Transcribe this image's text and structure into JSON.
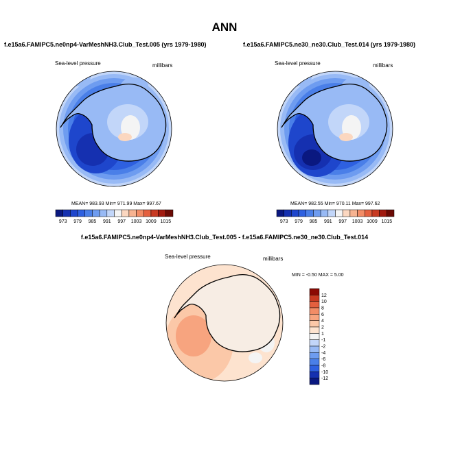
{
  "figure": {
    "title": "ANN"
  },
  "panels": [
    {
      "title": "f.e15a6.FAMIPC5.ne0np4-VarMeshNH3.Club_Test.005 (yrs 1979-1980)",
      "left_label": "Sea-level pressure",
      "right_label": "millibars",
      "stats": "MEAN= 983.93   Min= 971.99   Max= 997.67"
    },
    {
      "title": "f.e15a6.FAMIPC5.ne30_ne30.Club_Test.014 (yrs 1979-1980)",
      "left_label": "Sea-level pressure",
      "right_label": "millibars",
      "stats": "MEAN= 982.55   Min= 970.11   Max= 997.62"
    },
    {
      "title": "f.e15a6.FAMIPC5.ne0np4-VarMeshNH3.Club_Test.005 - f.e15a6.FAMIPC5.ne30_ne30.Club_Test.014",
      "left_label": "Sea-level pressure",
      "right_label": "millibars",
      "stats": "MIN =  -0.50  MAX =    5.00"
    }
  ],
  "chart_data": [
    {
      "type": "heatmap",
      "projection": "south-polar-stereographic",
      "variable": "Sea-level pressure",
      "units": "millibars",
      "summary": {
        "mean": 983.93,
        "min": 971.99,
        "max": 997.67
      },
      "colorbar": {
        "orientation": "horizontal",
        "levels": [
          973,
          976,
          979,
          982,
          985,
          988,
          991,
          994,
          997,
          1000,
          1003,
          1006,
          1009,
          1012,
          1015
        ],
        "tick_labels": [
          "973",
          "979",
          "985",
          "991",
          "997",
          "1003",
          "1009",
          "1015"
        ],
        "colors": [
          "#0a1880",
          "#1530b0",
          "#1e46cc",
          "#2e60e0",
          "#4a7fe8",
          "#6e9cf0",
          "#98baf5",
          "#c2d6f9",
          "#f4f4f4",
          "#fbd7c0",
          "#f7b391",
          "#f28c66",
          "#e4603f",
          "#c83a22",
          "#a11a0f",
          "#6b0a04"
        ]
      }
    },
    {
      "type": "heatmap",
      "projection": "south-polar-stereographic",
      "variable": "Sea-level pressure",
      "units": "millibars",
      "summary": {
        "mean": 982.55,
        "min": 970.11,
        "max": 997.62
      },
      "colorbar": {
        "orientation": "horizontal",
        "levels": [
          973,
          976,
          979,
          982,
          985,
          988,
          991,
          994,
          997,
          1000,
          1003,
          1006,
          1009,
          1012,
          1015
        ],
        "tick_labels": [
          "973",
          "979",
          "985",
          "991",
          "997",
          "1003",
          "1009",
          "1015"
        ],
        "colors": [
          "#0a1880",
          "#1530b0",
          "#1e46cc",
          "#2e60e0",
          "#4a7fe8",
          "#6e9cf0",
          "#98baf5",
          "#c2d6f9",
          "#f4f4f4",
          "#fbd7c0",
          "#f7b391",
          "#f28c66",
          "#e4603f",
          "#c83a22",
          "#a11a0f",
          "#6b0a04"
        ]
      }
    },
    {
      "type": "heatmap",
      "projection": "south-polar-stereographic",
      "variable": "Sea-level pressure",
      "units": "millibars",
      "summary": {
        "min": -0.5,
        "max": 5.0
      },
      "colorbar": {
        "orientation": "vertical",
        "levels": [
          -12,
          -10,
          -8,
          -6,
          -4,
          -2,
          -1,
          1,
          2,
          4,
          6,
          8,
          10,
          12
        ],
        "tick_labels": [
          "12",
          "10",
          "8",
          "6",
          "4",
          "2",
          "1",
          "-1",
          "-2",
          "-4",
          "-6",
          "-8",
          "-10",
          "-12"
        ],
        "colors": [
          "#0a1880",
          "#1530b0",
          "#2e60e0",
          "#4a7fe8",
          "#6e9cf0",
          "#98baf5",
          "#c2d6f9",
          "#f4f4f4",
          "#fde3cf",
          "#fbc8a8",
          "#f7a47f",
          "#f28c66",
          "#e4603f",
          "#c83a22",
          "#8b0a04"
        ]
      }
    }
  ]
}
